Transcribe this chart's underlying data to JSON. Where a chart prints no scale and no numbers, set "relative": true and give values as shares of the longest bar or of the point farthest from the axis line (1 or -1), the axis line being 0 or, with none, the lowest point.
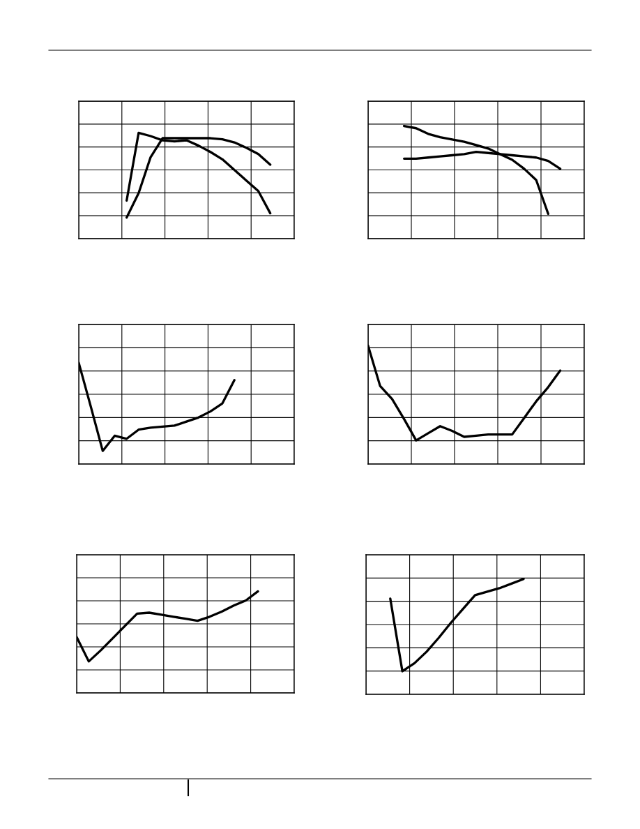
{
  "chart_data": [
    {
      "type": "line",
      "relative": true,
      "grid": true,
      "categories": [
        null,
        null,
        null,
        null,
        null,
        null,
        null,
        null,
        null,
        null,
        null,
        null,
        null,
        null,
        null,
        null,
        null,
        null,
        null
      ],
      "series": [
        {
          "color": "#000000",
          "values": [
            null,
            null,
            null,
            null,
            0.36,
            1,
            0.97,
            0.93,
            0.92,
            0.93,
            0.88,
            0.82,
            0.75,
            0.65,
            0.55,
            0.45,
            0.24,
            null,
            null
          ]
        },
        {
          "color": "#000000",
          "values": [
            null,
            null,
            null,
            null,
            0.2,
            0.43,
            0.77,
            0.95,
            0.95,
            0.95,
            0.95,
            0.95,
            0.94,
            0.91,
            0.86,
            0.8,
            0.7,
            null,
            null
          ]
        }
      ]
    },
    {
      "type": "line",
      "relative": true,
      "grid": true,
      "categories": [
        null,
        null,
        null,
        null,
        null,
        null,
        null,
        null,
        null,
        null,
        null,
        null,
        null,
        null,
        null,
        null,
        null,
        null,
        null
      ],
      "series": [
        {
          "color": "#000000",
          "values": [
            null,
            null,
            null,
            1,
            0.98,
            0.93,
            0.9,
            0.88,
            0.86,
            0.83,
            0.8,
            0.75,
            0.7,
            0.62,
            0.52,
            0.22,
            null,
            null,
            null
          ]
        },
        {
          "color": "#000000",
          "values": [
            null,
            null,
            null,
            0.71,
            0.71,
            0.72,
            0.73,
            0.74,
            0.75,
            0.77,
            0.76,
            0.75,
            0.74,
            0.73,
            0.72,
            0.69,
            0.62,
            null,
            null
          ]
        }
      ]
    },
    {
      "type": "line",
      "relative": true,
      "grid": true,
      "categories": [
        null,
        null,
        null,
        null,
        null,
        null,
        null,
        null,
        null,
        null,
        null,
        null,
        null,
        null,
        null,
        null,
        null,
        null,
        null
      ],
      "series": [
        {
          "color": "#000000",
          "values": [
            1,
            0.57,
            0.13,
            0.28,
            0.25,
            0.34,
            0.36,
            0.37,
            0.38,
            0.42,
            0.46,
            0.52,
            0.6,
            0.83,
            null,
            null,
            null,
            null,
            null
          ]
        }
      ]
    },
    {
      "type": "line",
      "relative": true,
      "grid": true,
      "categories": [
        null,
        null,
        null,
        null,
        null,
        null,
        null,
        null,
        null,
        null,
        null,
        null,
        null,
        null,
        null,
        null,
        null,
        null,
        null
      ],
      "series": [
        {
          "color": "#000000",
          "values": [
            1,
            0.66,
            0.55,
            0.38,
            0.2,
            0.26,
            0.32,
            0.28,
            0.23,
            0.24,
            0.25,
            0.25,
            0.25,
            0.39,
            0.53,
            0.65,
            0.79,
            null,
            null
          ]
        }
      ]
    },
    {
      "type": "line",
      "relative": true,
      "grid": true,
      "categories": [
        null,
        null,
        null,
        null,
        null,
        null,
        null,
        null,
        null,
        null,
        null,
        null,
        null,
        null,
        null,
        null,
        null,
        null,
        null
      ],
      "series": [
        {
          "color": "#000000",
          "values": [
            0.55,
            0.31,
            0.42,
            0.54,
            0.66,
            0.78,
            0.79,
            0.77,
            0.75,
            0.73,
            0.71,
            0.75,
            0.8,
            0.86,
            0.91,
            1,
            null,
            null,
            null
          ]
        }
      ]
    },
    {
      "type": "line",
      "relative": true,
      "grid": true,
      "categories": [
        null,
        null,
        null,
        null,
        null,
        null,
        null,
        null,
        null,
        null,
        null,
        null,
        null,
        null,
        null,
        null,
        null,
        null,
        null
      ],
      "series": [
        {
          "color": "#000000",
          "values": [
            null,
            null,
            0.83,
            0.2,
            0.27,
            0.37,
            0.49,
            0.62,
            0.74,
            0.86,
            0.89,
            0.92,
            0.96,
            1,
            null,
            null,
            null,
            null,
            null
          ]
        }
      ]
    }
  ]
}
